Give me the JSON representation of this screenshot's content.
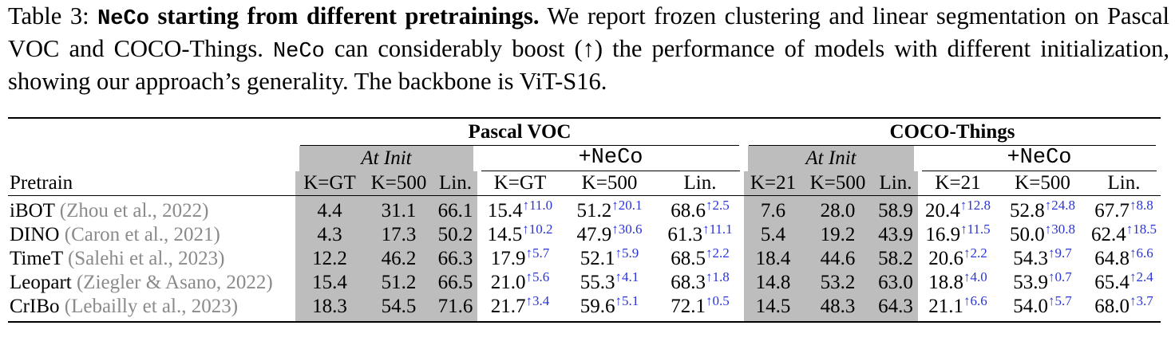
{
  "caption": {
    "label": "Table 3:",
    "title_mono": "NeCo",
    "title_rest": "starting from different pretrainings.",
    "text_1": "We report frozen clustering and linear segmentation on Pascal VOC and COCO-Things.",
    "text_mono": "NeCo",
    "text_2": "can considerably boost (↑) the performance of models with different initialization, showing our approach’s generality. The backbone is ViT-S16."
  },
  "table": {
    "groups": [
      "Pascal VOC",
      "COCO-Things"
    ],
    "subgroups": [
      "At Init",
      "+NeCo",
      "At Init",
      "+NeCo"
    ],
    "columns": [
      "Pretrain",
      "K=GT",
      "K=500",
      "Lin.",
      "K=GT",
      "K=500",
      "Lin.",
      "K=21",
      "K=500",
      "Lin.",
      "K=21",
      "K=500",
      "Lin."
    ],
    "rows": [
      {
        "name": "iBOT",
        "cite_pre": "(Zhou et al., ",
        "cite_year": "2022",
        "cite_post": ")",
        "voc_init": [
          "4.4",
          "31.1",
          "66.1"
        ],
        "voc_neco": [
          [
            "15.4",
            "↑11.0"
          ],
          [
            "51.2",
            "↑20.1"
          ],
          [
            "68.6",
            "↑2.5"
          ]
        ],
        "coco_init": [
          "7.6",
          "28.0",
          "58.9"
        ],
        "coco_neco": [
          [
            "20.4",
            "↑12.8"
          ],
          [
            "52.8",
            "↑24.8"
          ],
          [
            "67.7",
            "↑8.8"
          ]
        ]
      },
      {
        "name": "DINO",
        "cite_pre": "(Caron et al., ",
        "cite_year": "2021",
        "cite_post": ")",
        "voc_init": [
          "4.3",
          "17.3",
          "50.2"
        ],
        "voc_neco": [
          [
            "14.5",
            "↑10.2"
          ],
          [
            "47.9",
            "↑30.6"
          ],
          [
            "61.3",
            "↑11.1"
          ]
        ],
        "coco_init": [
          "5.4",
          "19.2",
          "43.9"
        ],
        "coco_neco": [
          [
            "16.9",
            "↑11.5"
          ],
          [
            "50.0",
            "↑30.8"
          ],
          [
            "62.4",
            "↑18.5"
          ]
        ]
      },
      {
        "name": "TimeT",
        "cite_pre": "(Salehi et al., ",
        "cite_year": "2023",
        "cite_post": ")",
        "voc_init": [
          "12.2",
          "46.2",
          "66.3"
        ],
        "voc_neco": [
          [
            "17.9",
            "↑5.7"
          ],
          [
            "52.1",
            "↑5.9"
          ],
          [
            "68.5",
            "↑2.2"
          ]
        ],
        "coco_init": [
          "18.4",
          "44.6",
          "58.2"
        ],
        "coco_neco": [
          [
            "20.6",
            "↑2.2"
          ],
          [
            "54.3",
            "↑9.7"
          ],
          [
            "64.8",
            "↑6.6"
          ]
        ]
      },
      {
        "name": "Leopart",
        "cite_pre": "(Ziegler & Asano, ",
        "cite_year": "2022",
        "cite_post": ")",
        "voc_init": [
          "15.4",
          "51.2",
          "66.5"
        ],
        "voc_neco": [
          [
            "21.0",
            "↑5.6"
          ],
          [
            "55.3",
            "↑4.1"
          ],
          [
            "68.3",
            "↑1.8"
          ]
        ],
        "coco_init": [
          "14.8",
          "53.2",
          "63.0"
        ],
        "coco_neco": [
          [
            "18.8",
            "↑4.0"
          ],
          [
            "53.9",
            "↑0.7"
          ],
          [
            "65.4",
            "↑2.4"
          ]
        ]
      },
      {
        "name": "CrIBo",
        "cite_pre": "(Lebailly et al., ",
        "cite_year": "2023",
        "cite_post": ")",
        "voc_init": [
          "18.3",
          "54.5",
          "71.6"
        ],
        "voc_neco": [
          [
            "21.7",
            "↑3.4"
          ],
          [
            "59.6",
            "↑5.1"
          ],
          [
            "72.1",
            "↑0.5"
          ]
        ],
        "coco_init": [
          "14.5",
          "48.3",
          "64.3"
        ],
        "coco_neco": [
          [
            "21.1",
            "↑6.6"
          ],
          [
            "54.0",
            "↑5.7"
          ],
          [
            "68.0",
            "↑3.7"
          ]
        ]
      }
    ]
  }
}
